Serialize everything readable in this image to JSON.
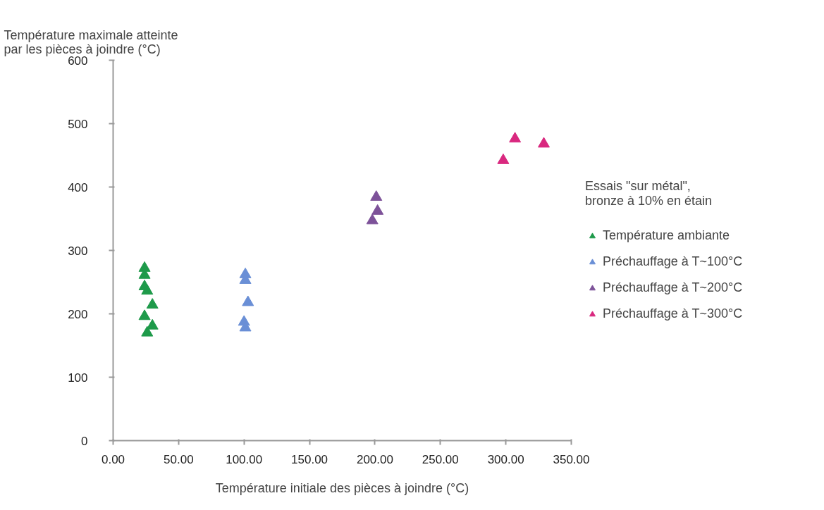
{
  "chart_data": {
    "type": "scatter",
    "ylabel": "Température maximale atteinte\npar les pièces à joindre (°C)",
    "xlabel": "Température initiale des pièces à joindre (°C)",
    "legend_title": "Essais \"sur métal\",\nbronze à 10% en étain",
    "marker": "triangle",
    "grid": false,
    "legend": "right",
    "xlim": [
      0,
      350
    ],
    "ylim": [
      0,
      600
    ],
    "xticks": [
      {
        "value": 0,
        "label": "0.00"
      },
      {
        "value": 50,
        "label": "50.00"
      },
      {
        "value": 100,
        "label": "100.00"
      },
      {
        "value": 150,
        "label": "150.00"
      },
      {
        "value": 200,
        "label": "200.00"
      },
      {
        "value": 250,
        "label": "250.00"
      },
      {
        "value": 300,
        "label": "300.00"
      },
      {
        "value": 350,
        "label": "350.00"
      }
    ],
    "yticks": [
      0,
      100,
      200,
      300,
      400,
      500,
      600
    ],
    "series": [
      {
        "name": "Température ambiante",
        "color": "#1e9a4a",
        "x": [
          24,
          24,
          24,
          26,
          30,
          24,
          30,
          26
        ],
        "values": [
          272,
          261,
          243,
          236,
          214,
          196,
          181,
          170
        ]
      },
      {
        "name": "Préchauffage à T~100°C",
        "color": "#6a8fd6",
        "x": [
          101,
          101,
          103,
          100,
          101
        ],
        "values": [
          262,
          253,
          218,
          187,
          178
        ]
      },
      {
        "name": "Préchauffage à T~200°C",
        "color": "#7d5299",
        "x": [
          201,
          202,
          198
        ],
        "values": [
          384,
          362,
          347
        ]
      },
      {
        "name": "Préchauffage à T~300°C",
        "color": "#d9287f",
        "x": [
          307,
          329,
          298
        ],
        "values": [
          476,
          468,
          442
        ]
      }
    ]
  }
}
